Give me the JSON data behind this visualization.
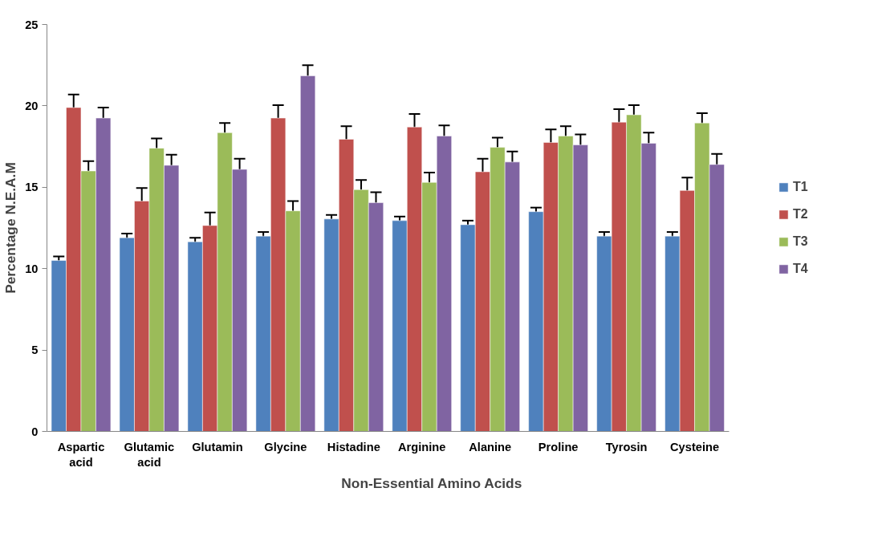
{
  "chart_data": {
    "type": "bar",
    "xlabel": "Non-Essential Amino Acids",
    "ylabel": "Percentage N.E.A.M",
    "categories": [
      "Aspartic acid",
      "Glutamic acid",
      "Glutamin",
      "Glycine",
      "Histadine",
      "Arginine",
      "Alanine",
      "Proline",
      "Tyrosin",
      "Cysteine"
    ],
    "series": [
      {
        "name": "T1",
        "color": "#4f81bd",
        "values": [
          10.5,
          11.9,
          11.65,
          12.0,
          13.05,
          12.95,
          12.7,
          13.5,
          12.0,
          12.0
        ],
        "errors": [
          0.25,
          0.25,
          0.25,
          0.25,
          0.25,
          0.25,
          0.25,
          0.25,
          0.25,
          0.25
        ]
      },
      {
        "name": "T2",
        "color": "#c0504d",
        "values": [
          19.9,
          14.15,
          12.65,
          19.25,
          17.95,
          18.7,
          15.95,
          17.75,
          19.0,
          14.8
        ],
        "errors": [
          0.8,
          0.8,
          0.8,
          0.8,
          0.8,
          0.8,
          0.8,
          0.8,
          0.8,
          0.8
        ]
      },
      {
        "name": "T3",
        "color": "#9bbb59",
        "values": [
          16.0,
          17.4,
          18.35,
          13.55,
          14.85,
          15.3,
          17.45,
          18.15,
          19.45,
          18.95
        ],
        "errors": [
          0.6,
          0.6,
          0.6,
          0.6,
          0.6,
          0.6,
          0.6,
          0.6,
          0.6,
          0.6
        ]
      },
      {
        "name": "T4",
        "color": "#8064a2",
        "values": [
          19.25,
          16.35,
          16.1,
          21.85,
          14.05,
          18.15,
          16.55,
          17.6,
          17.7,
          16.4
        ],
        "errors": [
          0.65,
          0.65,
          0.65,
          0.65,
          0.65,
          0.65,
          0.65,
          0.65,
          0.65,
          0.65
        ]
      }
    ],
    "ylim": [
      0,
      25
    ],
    "yticks": [
      0,
      5,
      10,
      15,
      20,
      25
    ],
    "grid": false,
    "legend": "right"
  }
}
